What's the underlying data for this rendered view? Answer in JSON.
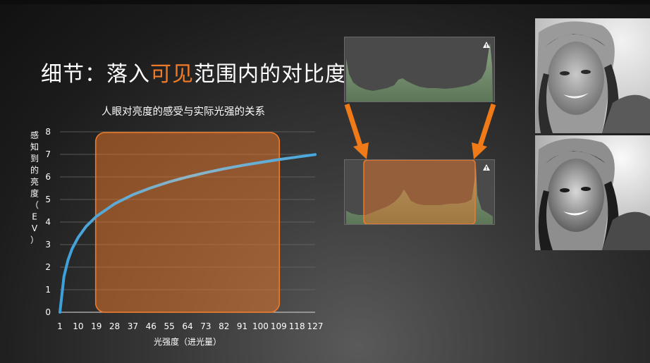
{
  "slide": {
    "title_prefix": "细节：落入",
    "title_highlight": "可见",
    "title_suffix": "范围内的对比度",
    "highlight_color": "#f07a28"
  },
  "chart_data": {
    "type": "line",
    "title": "人眼对亮度的感受与实际光强的关系",
    "xlabel": "光强度（进光量）",
    "ylabel": "感知到的亮度（EV）",
    "categories": [
      "1",
      "10",
      "19",
      "28",
      "37",
      "46",
      "55",
      "64",
      "73",
      "82",
      "91",
      "100",
      "109",
      "118",
      "127"
    ],
    "ylim": [
      0,
      8
    ],
    "yticks": [
      "0",
      "1",
      "2",
      "3",
      "4",
      "5",
      "6",
      "7",
      "8"
    ],
    "grid": true,
    "series": [
      {
        "x": [
          1,
          3,
          5,
          7,
          10,
          14,
          19,
          28,
          37,
          46,
          55,
          64,
          73,
          82,
          91,
          100,
          109,
          118,
          127
        ],
        "y": [
          0,
          1.58,
          2.32,
          2.81,
          3.32,
          3.81,
          4.25,
          4.81,
          5.21,
          5.52,
          5.78,
          6.0,
          6.19,
          6.36,
          6.51,
          6.64,
          6.77,
          6.88,
          6.99
        ]
      }
    ],
    "highlight_region": {
      "x_from": 19,
      "x_to": 109,
      "color": "#f07a28"
    },
    "line_color": "#4aa6d8"
  },
  "icons": {
    "warning": "warning-triangle-icon",
    "arrow": "down-arrow-icon"
  },
  "colors": {
    "arrow": "#f07a18",
    "hist_fill": "#6f8a6a"
  }
}
